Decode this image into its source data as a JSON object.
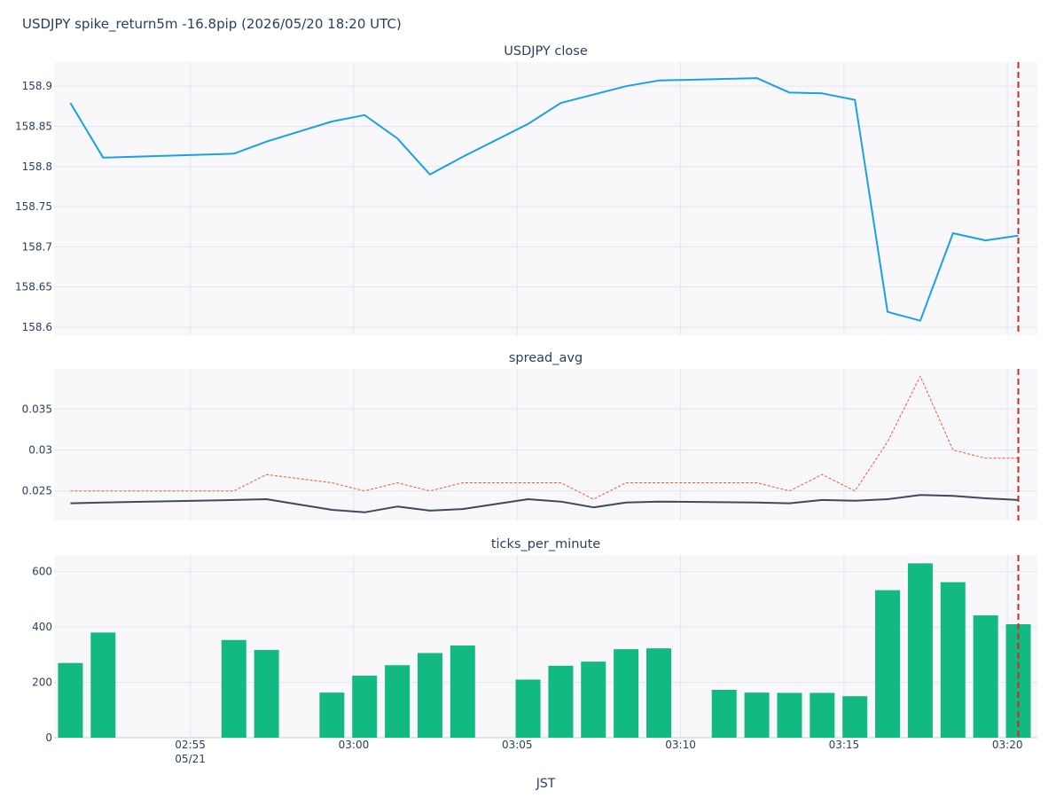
{
  "title": "USDJPY spike_return5m -16.8pip (2026/05/20 18:20 UTC)",
  "chart_data": {
    "type": "line",
    "xlabel": "JST",
    "x_ticks": [
      {
        "t": "02:55",
        "label": "02:55",
        "sub": "05/21"
      },
      {
        "t": "03:00",
        "label": "03:00",
        "sub": ""
      },
      {
        "t": "03:05",
        "label": "03:05",
        "sub": ""
      },
      {
        "t": "03:10",
        "label": "03:10",
        "sub": ""
      },
      {
        "t": "03:15",
        "label": "03:15",
        "sub": ""
      },
      {
        "t": "03:20",
        "label": "03:20",
        "sub": ""
      }
    ],
    "x_range": [
      "02:50:50",
      "03:20:55"
    ],
    "event_time": "03:20:20",
    "grid": true,
    "panels": [
      {
        "title": "USDJPY close",
        "type": "line",
        "ylim": [
          158.59,
          158.93
        ],
        "y_ticks": [
          158.6,
          158.65,
          158.7,
          158.75,
          158.8,
          158.85,
          158.9
        ],
        "y_tick_labels": [
          "158.6",
          "158.65",
          "158.7",
          "158.75",
          "158.8",
          "158.85",
          "158.9"
        ],
        "series": [
          {
            "color": "#1ba1e2",
            "x": [
              "02:51:20",
              "02:52:20",
              "02:56:20",
              "02:57:20",
              "02:59:20",
              "03:00:20",
              "03:01:20",
              "03:02:20",
              "03:03:20",
              "03:05:20",
              "03:06:20",
              "03:08:20",
              "03:09:20",
              "03:12:20",
              "03:13:20",
              "03:14:20",
              "03:15:20",
              "03:16:20",
              "03:17:20",
              "03:18:20",
              "03:19:20",
              "03:20:20"
            ],
            "values": [
              158.879,
              158.811,
              158.816,
              158.831,
              158.856,
              158.864,
              158.835,
              158.79,
              158.812,
              158.853,
              158.879,
              158.9,
              158.907,
              158.91,
              158.892,
              158.891,
              158.883,
              158.619,
              158.608,
              158.717,
              158.708,
              158.714
            ]
          }
        ]
      },
      {
        "title": "spread_avg",
        "type": "line",
        "ylim": [
          0.0214,
          0.0399
        ],
        "y_ticks": [
          0.025,
          0.03,
          0.035
        ],
        "y_tick_labels": [
          "0.025",
          "0.03",
          "0.035"
        ],
        "series": [
          {
            "color": "#ef553b",
            "dashed": true,
            "x": [
              "02:51:20",
              "02:56:20",
              "02:57:20",
              "02:59:20",
              "03:00:20",
              "03:01:20",
              "03:02:20",
              "03:03:20",
              "03:06:20",
              "03:07:20",
              "03:08:20",
              "03:12:20",
              "03:13:20",
              "03:14:20",
              "03:15:20",
              "03:16:20",
              "03:17:20",
              "03:18:20",
              "03:19:20",
              "03:20:20"
            ],
            "values": [
              0.025,
              0.025,
              0.027,
              0.026,
              0.025,
              0.026,
              0.025,
              0.026,
              0.026,
              0.024,
              0.026,
              0.026,
              0.025,
              0.027,
              0.025,
              0.031,
              0.039,
              0.03,
              0.029,
              0.029
            ]
          },
          {
            "color": "#3d4a5c",
            "dashed": false,
            "x": [
              "02:51:20",
              "02:52:20",
              "02:56:20",
              "02:57:20",
              "02:59:20",
              "03:00:20",
              "03:01:20",
              "03:02:20",
              "03:03:20",
              "03:05:20",
              "03:06:20",
              "03:07:20",
              "03:08:20",
              "03:09:20",
              "03:12:20",
              "03:13:20",
              "03:14:20",
              "03:15:20",
              "03:16:20",
              "03:17:20",
              "03:18:20",
              "03:19:20",
              "03:20:20"
            ],
            "values": [
              0.0235,
              0.0236,
              0.0239,
              0.024,
              0.0227,
              0.0224,
              0.0231,
              0.0226,
              0.0228,
              0.024,
              0.0237,
              0.023,
              0.0236,
              0.0237,
              0.0236,
              0.0235,
              0.0239,
              0.0238,
              0.024,
              0.0245,
              0.0244,
              0.0241,
              0.0239
            ]
          }
        ]
      },
      {
        "title": "ticks_per_minute",
        "type": "bar",
        "ylim": [
          0,
          660
        ],
        "y_ticks": [
          0,
          200,
          400,
          600
        ],
        "y_tick_labels": [
          "0",
          "200",
          "400",
          "600"
        ],
        "series": [
          {
            "color": "#12b981",
            "x": [
              "02:51:20",
              "02:52:20",
              "02:56:20",
              "02:57:20",
              "02:59:20",
              "03:00:20",
              "03:01:20",
              "03:02:20",
              "03:03:20",
              "03:05:20",
              "03:06:20",
              "03:07:20",
              "03:08:20",
              "03:09:20",
              "03:11:20",
              "03:12:20",
              "03:13:20",
              "03:14:20",
              "03:15:20",
              "03:16:20",
              "03:17:20",
              "03:18:20",
              "03:19:20",
              "03:20:20"
            ],
            "values": [
              270,
              380,
              353,
              317,
              163,
              224,
              262,
              306,
              333,
              210,
              260,
              275,
              320,
              323,
              173,
              163,
              162,
              162,
              150,
              533,
              630,
              562,
              442,
              410
            ]
          }
        ]
      }
    ]
  }
}
